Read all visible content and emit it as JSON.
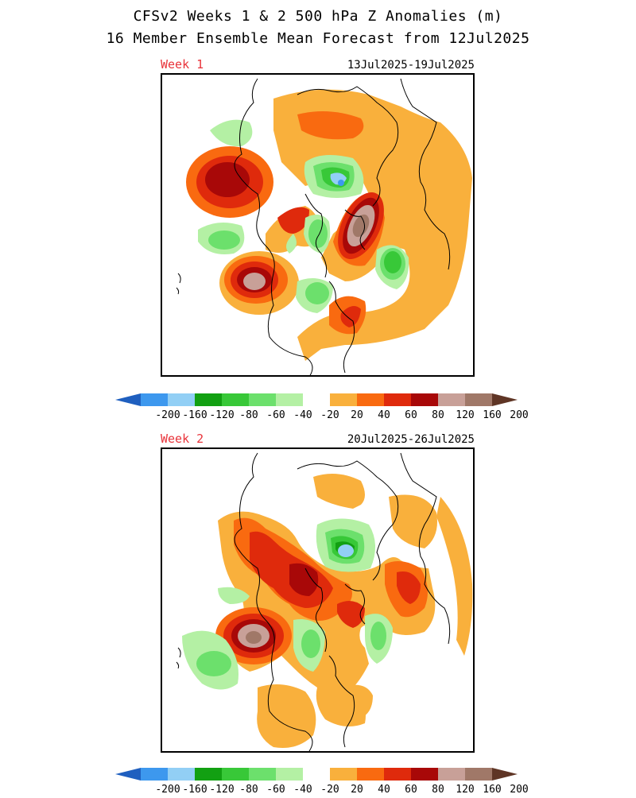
{
  "header": {
    "title": "CFSv2 Weeks 1 & 2 500 hPa Z Anomalies (m)",
    "subtitle": "16 Member Ensemble Mean Forecast from 12Jul2025"
  },
  "panels": [
    {
      "week_label": "Week 1",
      "date_range": "13Jul2025-19Jul2025"
    },
    {
      "week_label": "Week 2",
      "date_range": "20Jul2025-26Jul2025"
    }
  ],
  "colorbar": {
    "labels": [
      "-200",
      "-160",
      "-120",
      "-80",
      "-60",
      "-40",
      "-20",
      "20",
      "40",
      "60",
      "80",
      "120",
      "160",
      "200"
    ],
    "colors": [
      "#1f5fbf",
      "#3d98ee",
      "#92cff5",
      "#12a012",
      "#38c838",
      "#6ce06c",
      "#b4f0a4",
      "#ffffff",
      "#f9b03c",
      "#f96a10",
      "#df2a0c",
      "#a80808",
      "#c8a098",
      "#a07868",
      "#5f3525"
    ]
  }
}
